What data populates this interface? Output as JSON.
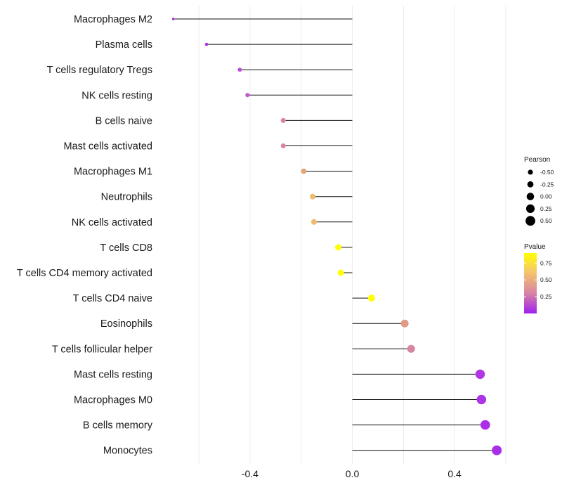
{
  "chart_data": {
    "type": "lollipop",
    "title": "",
    "xlabel": "",
    "ylabel": "",
    "xlim": [
      -0.72,
      0.62
    ],
    "x_ticks": [
      {
        "value": -0.4,
        "label": "-0.4"
      },
      {
        "value": 0.0,
        "label": "0.0"
      },
      {
        "value": 0.4,
        "label": "0.4"
      }
    ],
    "grid": true,
    "categories": [
      "Macrophages M2",
      "Plasma cells",
      "T cells regulatory  Tregs ",
      "NK cells resting",
      "B cells naive",
      "Mast cells activated",
      "Macrophages M1",
      "Neutrophils",
      "NK cells activated",
      "T cells CD8",
      "T cells CD4 memory activated",
      "T cells CD4 naive",
      "Eosinophils",
      "T cells follicular helper",
      "Mast cells resting",
      "Macrophages M0",
      "B cells memory",
      "Monocytes"
    ],
    "pearson": [
      -0.7,
      -0.57,
      -0.44,
      -0.41,
      -0.27,
      -0.27,
      -0.19,
      -0.155,
      -0.15,
      -0.055,
      -0.045,
      0.075,
      0.205,
      0.23,
      0.5,
      0.505,
      0.52,
      0.565
    ],
    "pvalue": [
      0.05,
      0.1,
      0.22,
      0.28,
      0.5,
      0.5,
      0.62,
      0.7,
      0.7,
      0.97,
      0.98,
      0.95,
      0.58,
      0.5,
      0.12,
      0.1,
      0.08,
      0.07
    ],
    "legend_size": {
      "title": "Pearson",
      "items": [
        {
          "value": -0.5,
          "label": "-0.50"
        },
        {
          "value": -0.25,
          "label": "-0.25"
        },
        {
          "value": 0.0,
          "label": "0.00"
        },
        {
          "value": 0.25,
          "label": "0.25"
        },
        {
          "value": 0.5,
          "label": "0.50"
        }
      ],
      "position": "right"
    },
    "legend_color": {
      "title": "Pvalue",
      "range": [
        0.0,
        0.9
      ],
      "ticks": [
        {
          "value": 0.75,
          "label": "0.75"
        },
        {
          "value": 0.5,
          "label": "0.50"
        },
        {
          "value": 0.25,
          "label": "0.25"
        }
      ],
      "colors": [
        "#a020f0",
        "#d987a0",
        "#f6c86a",
        "#ffff00"
      ],
      "position": "right"
    }
  }
}
